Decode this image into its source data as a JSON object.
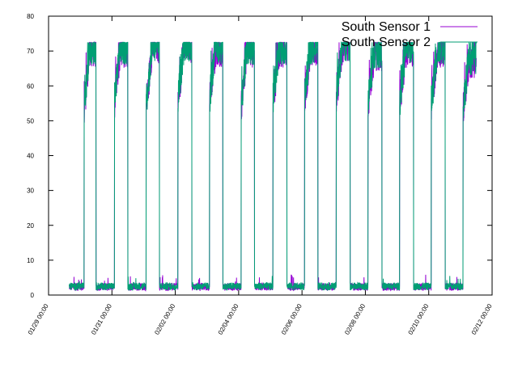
{
  "chart_data": {
    "type": "line",
    "title": "",
    "xlabel": "",
    "ylabel": "",
    "ylim": [
      0,
      80
    ],
    "yticks": [
      0,
      10,
      20,
      30,
      40,
      50,
      60,
      70,
      80
    ],
    "xlim_days": [
      0,
      14
    ],
    "xticks": [
      {
        "day": 0,
        "label": "01/29 00:00"
      },
      {
        "day": 2,
        "label": "01/31 00:00"
      },
      {
        "day": 4,
        "label": "02/02 00:00"
      },
      {
        "day": 6,
        "label": "02/04 00:00"
      },
      {
        "day": 8,
        "label": "02/06 00:00"
      },
      {
        "day": 10,
        "label": "02/08 00:00"
      },
      {
        "day": 12,
        "label": "02/10 00:00"
      },
      {
        "day": 14,
        "label": "02/12 00:00"
      }
    ],
    "grid": false,
    "legend_position": "top-right",
    "series": [
      {
        "name": "South Sensor 1",
        "color": "#9400d3"
      },
      {
        "name": "South Sensor 2",
        "color": "#009e73"
      }
    ],
    "pattern": {
      "data_start_day": 0.65,
      "data_end_day": 13.5,
      "high_segments": [
        {
          "start": 1.12,
          "end": 1.5,
          "rise_from": 52,
          "level": 70
        },
        {
          "start": 2.08,
          "end": 2.5,
          "rise_from": 55,
          "level": 70
        },
        {
          "start": 3.08,
          "end": 3.5,
          "rise_from": 53,
          "level": 71
        },
        {
          "start": 4.08,
          "end": 4.52,
          "rise_from": 55,
          "level": 71
        },
        {
          "start": 5.08,
          "end": 5.5,
          "rise_from": 55,
          "level": 70
        },
        {
          "start": 6.08,
          "end": 6.5,
          "rise_from": 54,
          "level": 70
        },
        {
          "start": 7.08,
          "end": 7.52,
          "rise_from": 55,
          "level": 70
        },
        {
          "start": 8.08,
          "end": 8.5,
          "rise_from": 56,
          "level": 70
        },
        {
          "start": 9.08,
          "end": 9.52,
          "rise_from": 56,
          "level": 71
        },
        {
          "start": 10.08,
          "end": 10.52,
          "rise_from": 54,
          "level": 69
        },
        {
          "start": 11.08,
          "end": 11.52,
          "rise_from": 54,
          "level": 70
        },
        {
          "start": 12.08,
          "end": 12.52,
          "rise_from": 54,
          "level": 70
        },
        {
          "start": 13.08,
          "end": 13.5,
          "rise_from": 53,
          "level": 67
        }
      ],
      "low_level": 2.5
    }
  }
}
